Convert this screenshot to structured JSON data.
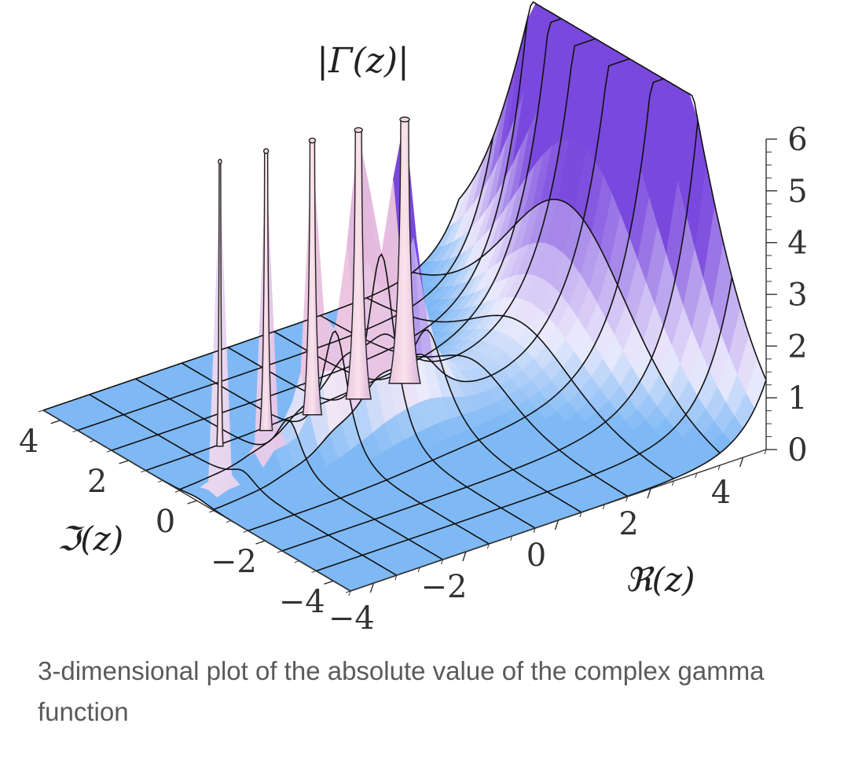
{
  "chart_data": {
    "type": "surface3d",
    "title": "|Γ(z)|",
    "xlabel": "ℜ(z)",
    "ylabel": "ℑ(z)",
    "zlabel": "",
    "xlim": [
      -4.5,
      4.5
    ],
    "ylim": [
      -4.5,
      4.5
    ],
    "zlim": [
      0,
      6
    ],
    "x_ticks": [
      "−4",
      "−2",
      "0",
      "2",
      "4"
    ],
    "y_ticks": [
      "−4",
      "−2",
      "0",
      "2",
      "4"
    ],
    "z_ticks": [
      "0",
      "1",
      "2",
      "3",
      "4",
      "5",
      "6"
    ],
    "function": "absolute value of the complex gamma function",
    "poles_at_re": [
      0,
      -1,
      -2,
      -3,
      -4
    ],
    "surface_clipped_at": 6,
    "colors": {
      "low": "#7fb9f5",
      "mid_pink": "#f4c4d6",
      "high": "#7a48dd",
      "grid": "#111111"
    }
  },
  "caption": "3-dimensional plot of the absolute value of the complex gamma function"
}
